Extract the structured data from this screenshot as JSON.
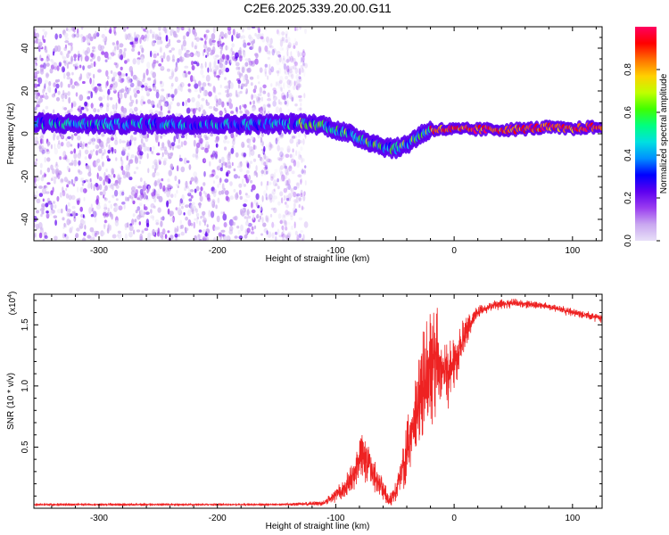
{
  "title": "C2E6.2025.339.20.00.G11",
  "chart_data": [
    {
      "type": "heatmap",
      "name": "spectrogram",
      "xlabel": "Height of straight line (km)",
      "ylabel": "Frequency (Hz)",
      "xlim": [
        -355,
        125
      ],
      "ylim": [
        -50,
        50
      ],
      "xticks": [
        -300,
        -200,
        -100,
        0,
        100
      ],
      "yticks": [
        -40,
        -20,
        0,
        20,
        40
      ],
      "scatter_region_x": [
        -355,
        -125
      ],
      "ridge": {
        "x": [
          -355,
          -300,
          -250,
          -200,
          -150,
          -130,
          -110,
          -90,
          -75,
          -60,
          -50,
          -40,
          -30,
          -20,
          0,
          20,
          50,
          80,
          100,
          110,
          125
        ],
        "y": [
          5,
          4.5,
          4.5,
          4.5,
          4.5,
          5,
          4,
          0,
          -3,
          -6,
          -7,
          -5,
          -1,
          2,
          2,
          2,
          2,
          3,
          2,
          3,
          3
        ]
      },
      "colorbar": {
        "label": "Normalized spectral amplitude",
        "ticks": [
          0.0,
          0.2,
          0.4,
          0.6,
          0.8
        ],
        "range": [
          0,
          1
        ],
        "colors": [
          "#e8e0f8",
          "#c9a7f0",
          "#9a3cf0",
          "#5d00f0",
          "#0000ff",
          "#0090ff",
          "#00e0e0",
          "#00ff80",
          "#40ff00",
          "#c0ff00",
          "#ffd000",
          "#ff7000",
          "#ff0000",
          "#ff0060"
        ]
      }
    },
    {
      "type": "line",
      "name": "snr",
      "xlabel": "Height of straight line (km)",
      "ylabel": "SNR (10 * v/v)",
      "yscale_label": "(x10",
      "yscale_exponent": "4",
      "yscale_suffix": ")",
      "xlim": [
        -355,
        125
      ],
      "ylim": [
        0,
        17500
      ],
      "xticks": [
        -300,
        -200,
        -100,
        0,
        100
      ],
      "yticks": [
        5000,
        10000,
        15000
      ],
      "ytick_labels": [
        "0.5",
        "1.0",
        "1.5"
      ],
      "color": "#ee2222",
      "envelope": {
        "x": [
          -355,
          -150,
          -110,
          -95,
          -85,
          -78,
          -70,
          -60,
          -55,
          -50,
          -45,
          -40,
          -35,
          -30,
          -25,
          -20,
          -15,
          -10,
          -5,
          0,
          10,
          20,
          30,
          50,
          80,
          100,
          125
        ],
        "y": [
          300,
          300,
          400,
          1500,
          2500,
          4500,
          3000,
          1500,
          600,
          1200,
          3000,
          4500,
          6500,
          8000,
          10000,
          11500,
          12000,
          11500,
          11000,
          12000,
          14500,
          16000,
          16500,
          16800,
          16500,
          16000,
          15500
        ],
        "spread": [
          60,
          60,
          200,
          700,
          1200,
          1800,
          1500,
          900,
          300,
          800,
          1500,
          2500,
          3200,
          3800,
          4200,
          4500,
          4000,
          3000,
          2500,
          2000,
          1200,
          500,
          400,
          300,
          300,
          300,
          300
        ]
      }
    }
  ]
}
